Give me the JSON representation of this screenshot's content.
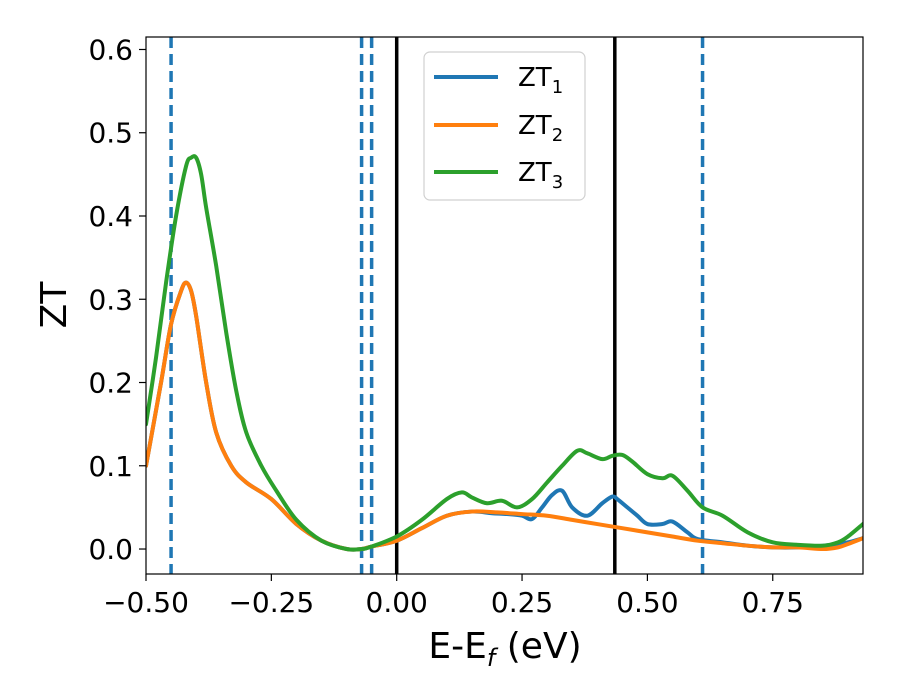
{
  "chart_data": {
    "type": "line",
    "title": "",
    "xlabel": "E-E",
    "xlabel_sub": "f",
    "xlabel_unit": " (eV)",
    "ylabel": "ZT",
    "xlim": [
      -0.5,
      0.93
    ],
    "ylim": [
      -0.03,
      0.615
    ],
    "xticks": [
      -0.5,
      -0.25,
      0.0,
      0.25,
      0.5,
      0.75
    ],
    "xtick_labels": [
      "−0.50",
      "−0.25",
      "0.00",
      "0.25",
      "0.50",
      "0.75"
    ],
    "yticks": [
      0.0,
      0.1,
      0.2,
      0.3,
      0.4,
      0.5,
      0.6
    ],
    "ytick_labels": [
      "0.0",
      "0.1",
      "0.2",
      "0.3",
      "0.4",
      "0.5",
      "0.6"
    ],
    "grid": false,
    "legend_position": "top-center",
    "series": [
      {
        "name": "ZT",
        "name_sub": "1",
        "color": "#1f77b4",
        "x": [
          -0.5,
          -0.47,
          -0.45,
          -0.43,
          -0.42,
          -0.41,
          -0.4,
          -0.38,
          -0.36,
          -0.33,
          -0.3,
          -0.25,
          -0.2,
          -0.15,
          -0.1,
          -0.07,
          -0.05,
          0.0,
          0.05,
          0.1,
          0.15,
          0.19,
          0.22,
          0.25,
          0.27,
          0.29,
          0.31,
          0.33,
          0.35,
          0.38,
          0.41,
          0.43,
          0.44,
          0.46,
          0.48,
          0.5,
          0.53,
          0.55,
          0.58,
          0.6,
          0.65,
          0.7,
          0.75,
          0.8,
          0.85,
          0.88,
          0.9,
          0.93
        ],
        "y": [
          0.1,
          0.2,
          0.27,
          0.31,
          0.32,
          0.31,
          0.28,
          0.2,
          0.14,
          0.1,
          0.08,
          0.06,
          0.03,
          0.01,
          0.0,
          0.0,
          0.003,
          0.01,
          0.025,
          0.04,
          0.045,
          0.043,
          0.042,
          0.04,
          0.036,
          0.05,
          0.065,
          0.07,
          0.05,
          0.04,
          0.055,
          0.063,
          0.06,
          0.05,
          0.04,
          0.03,
          0.03,
          0.033,
          0.02,
          0.012,
          0.008,
          0.004,
          0.002,
          0.002,
          0.004,
          0.006,
          0.008,
          0.013
        ]
      },
      {
        "name": "ZT",
        "name_sub": "2",
        "color": "#ff7f0e",
        "x": [
          -0.5,
          -0.47,
          -0.45,
          -0.43,
          -0.42,
          -0.41,
          -0.4,
          -0.38,
          -0.36,
          -0.33,
          -0.3,
          -0.25,
          -0.2,
          -0.15,
          -0.1,
          -0.07,
          -0.05,
          0.0,
          0.05,
          0.1,
          0.15,
          0.2,
          0.25,
          0.3,
          0.35,
          0.4,
          0.45,
          0.5,
          0.55,
          0.6,
          0.65,
          0.7,
          0.75,
          0.8,
          0.85,
          0.88,
          0.9,
          0.93
        ],
        "y": [
          0.1,
          0.2,
          0.27,
          0.31,
          0.32,
          0.31,
          0.28,
          0.2,
          0.14,
          0.1,
          0.08,
          0.06,
          0.03,
          0.01,
          0.0,
          0.0,
          0.003,
          0.01,
          0.025,
          0.04,
          0.045,
          0.044,
          0.042,
          0.04,
          0.035,
          0.03,
          0.025,
          0.02,
          0.015,
          0.01,
          0.007,
          0.004,
          0.002,
          0.002,
          0.0,
          0.002,
          0.006,
          0.013
        ]
      },
      {
        "name": "ZT",
        "name_sub": "3",
        "color": "#2ca02c",
        "x": [
          -0.5,
          -0.48,
          -0.46,
          -0.44,
          -0.42,
          -0.41,
          -0.4,
          -0.39,
          -0.38,
          -0.36,
          -0.34,
          -0.32,
          -0.3,
          -0.27,
          -0.24,
          -0.2,
          -0.15,
          -0.1,
          -0.07,
          -0.05,
          0.0,
          0.05,
          0.1,
          0.13,
          0.15,
          0.18,
          0.21,
          0.24,
          0.27,
          0.3,
          0.33,
          0.36,
          0.38,
          0.41,
          0.43,
          0.45,
          0.47,
          0.5,
          0.53,
          0.55,
          0.58,
          0.61,
          0.65,
          0.7,
          0.75,
          0.8,
          0.85,
          0.88,
          0.9,
          0.93
        ],
        "y": [
          0.15,
          0.23,
          0.32,
          0.4,
          0.46,
          0.47,
          0.47,
          0.45,
          0.41,
          0.34,
          0.26,
          0.19,
          0.14,
          0.1,
          0.07,
          0.035,
          0.01,
          0.0,
          0.0,
          0.003,
          0.015,
          0.035,
          0.06,
          0.068,
          0.062,
          0.055,
          0.058,
          0.05,
          0.06,
          0.08,
          0.1,
          0.118,
          0.115,
          0.108,
          0.112,
          0.113,
          0.105,
          0.09,
          0.085,
          0.088,
          0.07,
          0.05,
          0.04,
          0.02,
          0.008,
          0.005,
          0.004,
          0.008,
          0.015,
          0.03
        ]
      }
    ],
    "vlines": [
      {
        "x": -0.45,
        "color": "#1f77b4",
        "style": "dashed"
      },
      {
        "x": -0.07,
        "color": "#1f77b4",
        "style": "dashed"
      },
      {
        "x": -0.05,
        "color": "#1f77b4",
        "style": "dashed"
      },
      {
        "x": 0.0,
        "color": "#000000",
        "style": "solid"
      },
      {
        "x": 0.435,
        "color": "#000000",
        "style": "solid"
      },
      {
        "x": 0.61,
        "color": "#1f77b4",
        "style": "dashed"
      }
    ]
  }
}
